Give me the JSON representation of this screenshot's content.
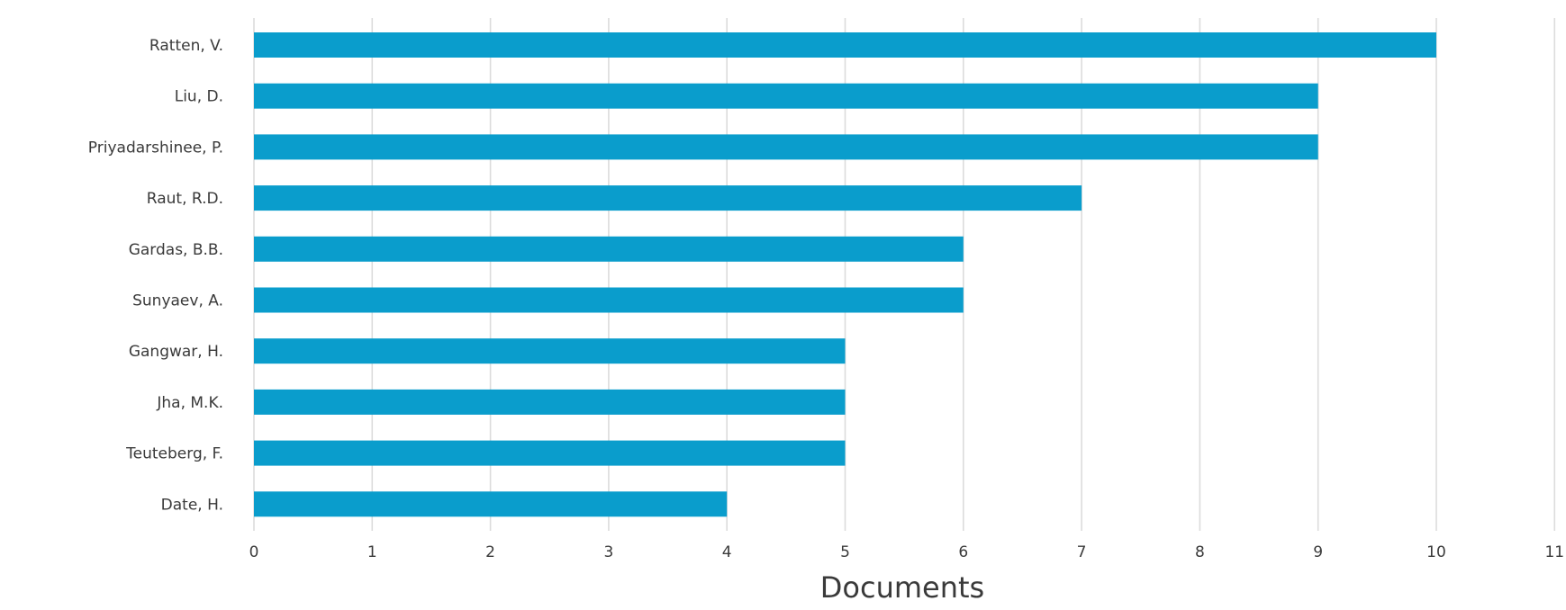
{
  "chart_data": {
    "type": "bar",
    "orientation": "horizontal",
    "categories": [
      "Ratten, V.",
      "Liu, D.",
      "Priyadarshinee, P.",
      "Raut, R.D.",
      "Gardas, B.B.",
      "Sunyaev, A.",
      "Gangwar, H.",
      "Jha, M.K.",
      "Teuteberg, F.",
      "Date, H."
    ],
    "values": [
      10,
      9,
      9,
      7,
      6,
      6,
      5,
      5,
      5,
      4
    ],
    "title": "",
    "xlabel": "Documents",
    "ylabel": "",
    "xlim": [
      0,
      11
    ],
    "xticks": [
      "0",
      "1",
      "2",
      "3",
      "4",
      "5",
      "6",
      "7",
      "8",
      "9",
      "10",
      "11"
    ],
    "grid": "vertical",
    "legend": "none",
    "bar_color": "#0a9dcc",
    "grid_color": "#dcdcdc"
  }
}
